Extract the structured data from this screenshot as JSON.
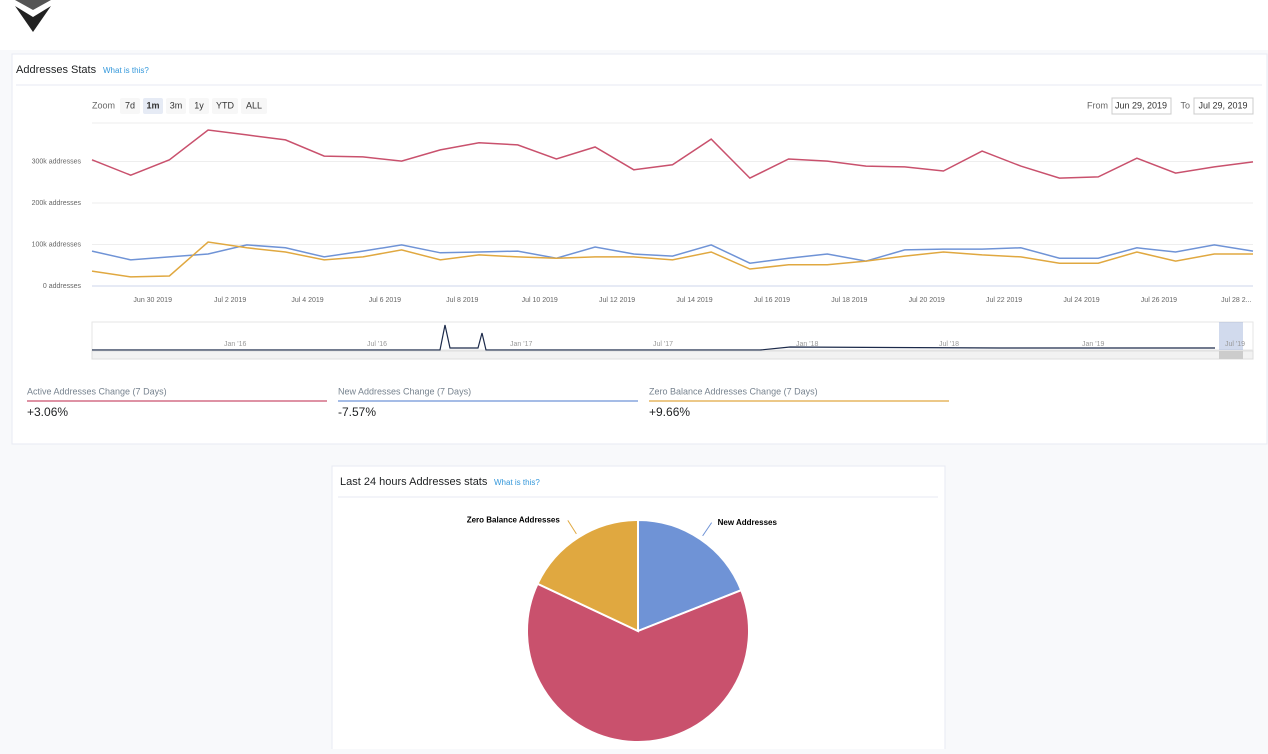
{
  "page": {
    "panel_title": "Addresses Stats",
    "panel_help": "What is this?",
    "zoom_label": "Zoom",
    "zoom_buttons": [
      "7d",
      "1m",
      "3m",
      "1y",
      "YTD",
      "ALL"
    ],
    "from_label": "From",
    "from_value": "Jun 29, 2019",
    "to_label": "To",
    "to_value": "Jul 29, 2019",
    "navigator_labels": [
      "Jan '16",
      "Jul '16",
      "Jan '17",
      "Jul '17",
      "Jan '18",
      "Jul '18",
      "Jan '19",
      "Jul '19"
    ],
    "changes": [
      {
        "label": "Active Addresses Change (7 Days)",
        "value": "+3.06%",
        "color": "#c9516d"
      },
      {
        "label": "New Addresses Change (7 Days)",
        "value": "-7.57%",
        "color": "#6f93d6"
      },
      {
        "label": "Zero Balance Addresses Change (7 Days)",
        "value": "+9.66%",
        "color": "#e0a840"
      }
    ],
    "pie_panel_title": "Last 24 hours Addresses stats",
    "pie_panel_help": "What is this?"
  },
  "chart_data": [
    {
      "type": "line",
      "categories": [
        null,
        "Jun 30 2019",
        null,
        "Jul 2 2019",
        null,
        "Jul 4 2019",
        null,
        "Jul 6 2019",
        null,
        "Jul 8 2019",
        null,
        "Jul 10 2019",
        null,
        "Jul 12 2019",
        null,
        "Jul 14 2019",
        null,
        "Jul 16 2019",
        null,
        "Jul 18 2019",
        null,
        "Jul 20 2019",
        null,
        "Jul 22 2019",
        null,
        "Jul 24 2019",
        null,
        "Jul 26 2019",
        null,
        "Jul 28 2...",
        null
      ],
      "series": [
        {
          "name": "Active Addresses",
          "color": "#c9516d",
          "values": [
            304000,
            267000,
            304000,
            376000,
            364000,
            352000,
            313000,
            311000,
            301000,
            328000,
            345000,
            340000,
            306000,
            335000,
            280000,
            292000,
            354000,
            260000,
            306000,
            301000,
            289000,
            287000,
            277000,
            325000,
            289000,
            260000,
            263000,
            308000,
            272000,
            287000,
            299000
          ]
        },
        {
          "name": "New Addresses",
          "color": "#6f93d6",
          "values": [
            84000,
            63000,
            70000,
            77000,
            99000,
            92000,
            70000,
            84000,
            99000,
            80000,
            82000,
            84000,
            67000,
            94000,
            77000,
            72000,
            99000,
            55000,
            67000,
            77000,
            60000,
            87000,
            89000,
            89000,
            92000,
            67000,
            67000,
            92000,
            82000,
            99000,
            84000
          ]
        },
        {
          "name": "Zero Balance Addresses",
          "color": "#e0a840",
          "values": [
            36000,
            22000,
            24000,
            106000,
            92000,
            82000,
            63000,
            70000,
            87000,
            63000,
            75000,
            70000,
            67000,
            70000,
            70000,
            63000,
            82000,
            41000,
            51000,
            51000,
            60000,
            72000,
            82000,
            75000,
            70000,
            55000,
            55000,
            82000,
            60000,
            77000,
            77000
          ]
        }
      ],
      "ylim": [
        0,
        400000
      ],
      "yticks": [
        {
          "value": 0,
          "label": "0 addresses"
        },
        {
          "value": 100000,
          "label": "100k addresses"
        },
        {
          "value": 200000,
          "label": "200k addresses"
        },
        {
          "value": 300000,
          "label": "300k addresses"
        }
      ],
      "grid": true
    },
    {
      "type": "pie",
      "categories": [
        "New Addresses",
        null,
        "Zero Balance Addresses"
      ],
      "values": [
        19,
        63,
        18
      ],
      "colors": [
        "#6f93d6",
        "#c9516d",
        "#e0a840"
      ]
    }
  ]
}
